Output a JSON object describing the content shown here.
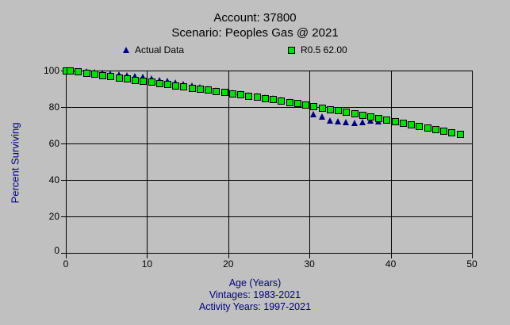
{
  "title": {
    "line1": "Account: 37800",
    "line2": "Scenario: Peoples Gas @ 2021"
  },
  "legend": {
    "actual_label": "Actual Data",
    "curve_label": "R0.5 62.00"
  },
  "footer": {
    "xlabel": "Age (Years)",
    "vintages": "Vintages: 1983-2021",
    "activity_years": "Activity Years: 1997-2021"
  },
  "colors": {
    "background": "#c0c0c0",
    "actual_marker": "#000080",
    "curve_marker": "#00e000",
    "axis_text": "#000000",
    "label_text": "#000080",
    "grid": "#000000"
  },
  "chart_data": {
    "type": "scatter",
    "title": "Account: 37800 / Scenario: Peoples Gas @ 2021",
    "xlabel": "Age (Years)",
    "ylabel": "Percent Surviving",
    "xlim": [
      0,
      50
    ],
    "ylim": [
      0,
      100
    ],
    "x_ticks": [
      0,
      10,
      20,
      30,
      40,
      50
    ],
    "y_ticks": [
      0,
      20,
      40,
      60,
      80,
      100
    ],
    "grid": true,
    "legend_position": "top",
    "series": [
      {
        "name": "Actual Data",
        "marker": "triangle",
        "color": "#000080",
        "points": [
          [
            0,
            100.0
          ],
          [
            0.5,
            100.0
          ],
          [
            1.5,
            99.7
          ],
          [
            2.5,
            99.4
          ],
          [
            3.5,
            99.1
          ],
          [
            4.5,
            98.8
          ],
          [
            5.5,
            98.4
          ],
          [
            6.5,
            98.0
          ],
          [
            7.5,
            97.5
          ],
          [
            8.5,
            97.0
          ],
          [
            9.5,
            96.4
          ],
          [
            10.5,
            95.7
          ],
          [
            11.5,
            95.0
          ],
          [
            12.5,
            94.2
          ],
          [
            13.5,
            93.4
          ],
          [
            14.5,
            92.5
          ],
          [
            15.5,
            91.6
          ],
          [
            16.5,
            90.7
          ],
          [
            17.5,
            89.9
          ],
          [
            18.5,
            89.1
          ],
          [
            19.5,
            88.4
          ],
          [
            20.5,
            87.8
          ],
          [
            21.5,
            87.2
          ],
          [
            22.5,
            86.6
          ],
          [
            23.5,
            86.0
          ],
          [
            24.5,
            85.3
          ],
          [
            25.5,
            84.6
          ],
          [
            26.5,
            83.8
          ],
          [
            27.5,
            83.0
          ],
          [
            28.5,
            82.2
          ],
          [
            29.5,
            81.0
          ],
          [
            30.5,
            76.1
          ],
          [
            31.5,
            74.8
          ],
          [
            32.5,
            72.6
          ],
          [
            33.5,
            72.2
          ],
          [
            34.5,
            71.6
          ],
          [
            35.5,
            71.3
          ],
          [
            36.5,
            71.7
          ],
          [
            37.5,
            72.4
          ],
          [
            38.5,
            72.0
          ]
        ]
      },
      {
        "name": "R0.5 62.00",
        "marker": "square",
        "color": "#00e000",
        "points": [
          [
            0,
            100.0
          ],
          [
            0.5,
            100.0
          ],
          [
            1.5,
            99.4
          ],
          [
            2.5,
            98.8
          ],
          [
            3.5,
            98.1
          ],
          [
            4.5,
            97.5
          ],
          [
            5.5,
            96.9
          ],
          [
            6.5,
            96.3
          ],
          [
            7.5,
            95.6
          ],
          [
            8.5,
            95.0
          ],
          [
            9.5,
            94.4
          ],
          [
            10.5,
            93.8
          ],
          [
            11.5,
            93.1
          ],
          [
            12.5,
            92.5
          ],
          [
            13.5,
            91.9
          ],
          [
            14.5,
            91.3
          ],
          [
            15.5,
            90.6
          ],
          [
            16.5,
            90.0
          ],
          [
            17.5,
            89.4
          ],
          [
            18.5,
            88.7
          ],
          [
            19.5,
            88.1
          ],
          [
            20.5,
            87.5
          ],
          [
            21.5,
            86.8
          ],
          [
            22.5,
            86.2
          ],
          [
            23.5,
            85.5
          ],
          [
            24.5,
            84.9
          ],
          [
            25.5,
            84.2
          ],
          [
            26.5,
            83.5
          ],
          [
            27.5,
            82.8
          ],
          [
            28.5,
            82.1
          ],
          [
            29.5,
            81.3
          ],
          [
            30.5,
            80.5
          ],
          [
            31.5,
            79.7
          ],
          [
            32.5,
            78.9
          ],
          [
            33.5,
            78.1
          ],
          [
            34.5,
            77.3
          ],
          [
            35.5,
            76.4
          ],
          [
            36.5,
            75.6
          ],
          [
            37.5,
            74.8
          ],
          [
            38.5,
            74.0
          ],
          [
            39.5,
            73.2
          ],
          [
            40.5,
            72.3
          ],
          [
            41.5,
            71.5
          ],
          [
            42.5,
            70.6
          ],
          [
            43.5,
            69.7
          ],
          [
            44.5,
            68.8
          ],
          [
            45.5,
            67.9
          ],
          [
            46.5,
            67.0
          ],
          [
            47.5,
            66.1
          ],
          [
            48.5,
            65.2
          ]
        ]
      }
    ]
  }
}
